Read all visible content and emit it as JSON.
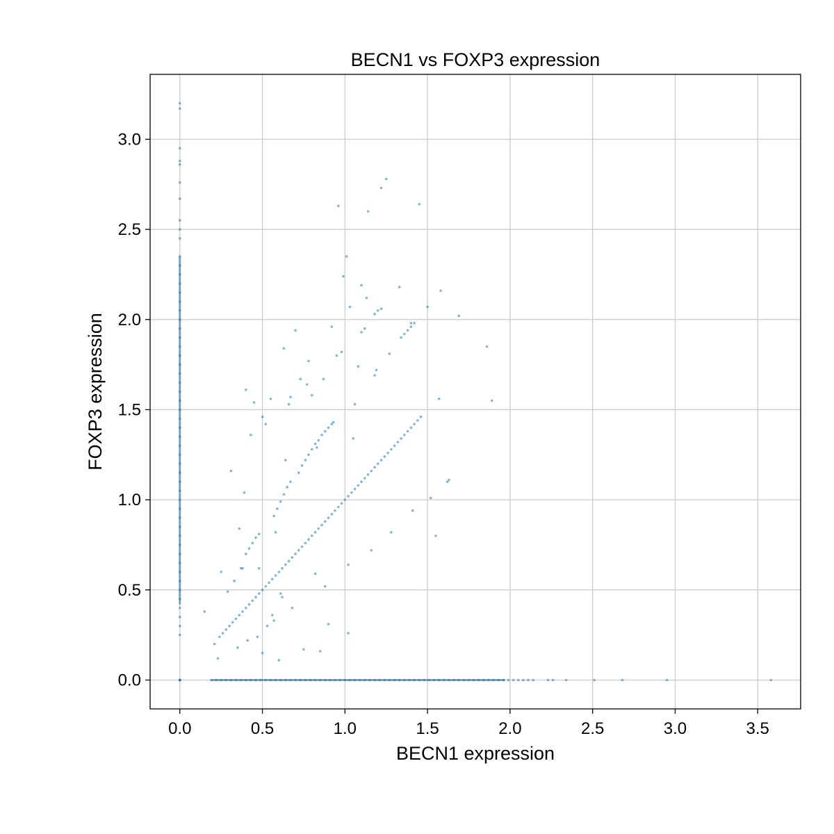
{
  "chart_data": {
    "type": "scatter",
    "title": "BECN1 vs FOXP3 expression",
    "xlabel": "BECN1 expression",
    "ylabel": "FOXP3 expression",
    "xlim": [
      -0.18,
      3.76
    ],
    "ylim": [
      -0.16,
      3.36
    ],
    "xticks": [
      0.0,
      0.5,
      1.0,
      1.5,
      2.0,
      2.5,
      3.0,
      3.5
    ],
    "yticks": [
      0.0,
      0.5,
      1.0,
      1.5,
      2.0,
      2.5,
      3.0
    ],
    "xtick_labels": [
      "0.0",
      "0.5",
      "1.0",
      "1.5",
      "2.0",
      "2.5",
      "3.0",
      "3.5"
    ],
    "ytick_labels": [
      "0.0",
      "0.5",
      "1.0",
      "1.5",
      "2.0",
      "2.5",
      "3.0"
    ],
    "grid": true,
    "point_color": "#1f77b4",
    "point_alpha": 0.55,
    "x": [
      0,
      0,
      0,
      0,
      0,
      0,
      0,
      0,
      0,
      0,
      0,
      0,
      0,
      0,
      0,
      0,
      0,
      0,
      0,
      0,
      0,
      0,
      0,
      0,
      0,
      0,
      0,
      0,
      0,
      0,
      0,
      0,
      0,
      0,
      0,
      0,
      0,
      0,
      0,
      0,
      0,
      0,
      0,
      0,
      0,
      0,
      0,
      0,
      0,
      0,
      0,
      0,
      0,
      0,
      0,
      0,
      0,
      0,
      0,
      0,
      0,
      0.19,
      0.22,
      0.25,
      0.28,
      0.31,
      0.34,
      0.37,
      0.4,
      0.43,
      0.46,
      0.49,
      0.52,
      0.55,
      0.58,
      0.61,
      0.64,
      0.67,
      0.7,
      0.73,
      0.76,
      0.79,
      0.82,
      0.85,
      0.88,
      0.91,
      0.94,
      0.97,
      1.0,
      1.03,
      1.06,
      1.09,
      1.12,
      1.15,
      1.18,
      1.21,
      1.24,
      1.27,
      1.3,
      1.33,
      1.36,
      1.39,
      1.42,
      1.45,
      1.48,
      1.51,
      1.54,
      1.57,
      1.6,
      1.63,
      1.66,
      1.69,
      1.72,
      1.75,
      1.78,
      1.81,
      1.84,
      1.87,
      1.9,
      1.93,
      1.96,
      1.99,
      2.02,
      2.05,
      2.08,
      2.11,
      2.14,
      2.23,
      2.26,
      2.34,
      2.51,
      2.68,
      2.95,
      3.58,
      0.24,
      0.26,
      0.28,
      0.3,
      0.32,
      0.34,
      0.36,
      0.38,
      0.4,
      0.42,
      0.44,
      0.46,
      0.48,
      0.5,
      0.52,
      0.54,
      0.56,
      0.58,
      0.6,
      0.62,
      0.64,
      0.66,
      0.68,
      0.7,
      0.72,
      0.74,
      0.76,
      0.78,
      0.8,
      0.82,
      0.84,
      0.86,
      0.88,
      0.9,
      0.92,
      0.94,
      0.96,
      0.98,
      1.0,
      1.02,
      1.04,
      1.06,
      1.08,
      1.1,
      1.12,
      1.14,
      1.16,
      1.18,
      1.2,
      1.22,
      1.24,
      1.26,
      1.28,
      1.3,
      1.32,
      1.34,
      1.36,
      1.38,
      1.4,
      1.42,
      1.44,
      1.46,
      0.38,
      0.4,
      0.42,
      0.44,
      0.46,
      0.48,
      0.57,
      0.59,
      0.61,
      0.63,
      0.65,
      0.67,
      0.72,
      0.74,
      0.76,
      0.78,
      0.8,
      0.82,
      0.84,
      0.86,
      0.88,
      0.9,
      0.92,
      1.34,
      1.36,
      1.38,
      1.4,
      1.42,
      1.18,
      1.2,
      1.22,
      0.15,
      0.21,
      0.23,
      0.25,
      0.29,
      0.31,
      0.33,
      0.35,
      0.36,
      0.37,
      0.39,
      0.4,
      0.41,
      0.43,
      0.45,
      0.47,
      0.48,
      0.5,
      0.5,
      0.52,
      0.53,
      0.55,
      0.56,
      0.57,
      0.58,
      0.6,
      0.61,
      0.62,
      0.63,
      0.64,
      0.66,
      0.67,
      0.68,
      0.7,
      0.73,
      0.75,
      0.77,
      0.8,
      0.82,
      0.85,
      0.87,
      0.88,
      0.9,
      0.92,
      0.95,
      0.98,
      0.99,
      1.01,
      1.02,
      1.03,
      1.05,
      1.06,
      1.08,
      1.1,
      1.12,
      1.14,
      1.18,
      1.19,
      1.22,
      1.25,
      1.27,
      1.28,
      1.33,
      1.41,
      1.45,
      1.5,
      1.52,
      1.55,
      1.57,
      1.58,
      1.62,
      1.63,
      1.69,
      1.86,
      1.89,
      0.78,
      0.93,
      0.96,
      1.02,
      1.1,
      1.13,
      1.16,
      1.4,
      0.83
    ],
    "y": [
      3.2,
      3.17,
      2.95,
      2.88,
      2.86,
      2.76,
      2.67,
      2.55,
      2.5,
      2.45,
      2.35,
      2.3,
      2.25,
      2.2,
      2.15,
      2.1,
      2.05,
      2.0,
      1.95,
      1.9,
      1.85,
      1.8,
      1.75,
      1.7,
      1.65,
      1.6,
      1.55,
      1.5,
      1.45,
      1.4,
      1.35,
      1.3,
      1.25,
      1.2,
      1.15,
      1.1,
      1.05,
      1.0,
      0.95,
      0.9,
      0.85,
      0.8,
      0.75,
      0.7,
      0.65,
      0.6,
      0.55,
      0.5,
      0.45,
      0.4,
      0.35,
      0.3,
      0.25,
      0,
      0,
      0,
      0,
      0,
      0,
      0,
      0,
      0,
      0,
      0,
      0,
      0,
      0,
      0,
      0,
      0,
      0,
      0,
      0,
      0,
      0,
      0,
      0,
      0,
      0,
      0,
      0,
      0,
      0,
      0,
      0,
      0,
      0,
      0,
      0,
      0,
      0,
      0,
      0,
      0,
      0,
      0,
      0,
      0,
      0,
      0,
      0,
      0,
      0,
      0,
      0,
      0,
      0,
      0,
      0,
      0,
      0,
      0,
      0,
      0,
      0,
      0,
      0,
      0,
      0,
      0,
      0,
      0,
      0,
      0,
      0,
      0,
      0,
      0,
      0,
      0,
      0,
      0,
      0,
      0,
      0.24,
      0.26,
      0.28,
      0.3,
      0.32,
      0.34,
      0.36,
      0.38,
      0.4,
      0.42,
      0.44,
      0.46,
      0.48,
      0.5,
      0.52,
      0.54,
      0.56,
      0.58,
      0.6,
      0.62,
      0.64,
      0.66,
      0.68,
      0.7,
      0.72,
      0.74,
      0.76,
      0.78,
      0.8,
      0.82,
      0.84,
      0.86,
      0.88,
      0.9,
      0.92,
      0.94,
      0.96,
      0.98,
      1.0,
      1.02,
      1.04,
      1.06,
      1.08,
      1.1,
      1.12,
      1.14,
      1.16,
      1.18,
      1.2,
      1.22,
      1.24,
      1.26,
      1.28,
      1.3,
      1.32,
      1.34,
      1.36,
      1.38,
      1.4,
      1.42,
      1.44,
      1.46,
      0.62,
      0.7,
      0.73,
      0.76,
      0.79,
      0.81,
      0.91,
      0.95,
      0.99,
      1.03,
      1.07,
      1.1,
      1.15,
      1.19,
      1.22,
      1.25,
      1.28,
      1.31,
      1.33,
      1.36,
      1.38,
      1.4,
      1.42,
      1.9,
      1.92,
      1.94,
      1.96,
      1.98,
      2.03,
      2.05,
      2.06,
      0.38,
      0.2,
      0.12,
      0.6,
      0.49,
      1.16,
      0.55,
      0.18,
      0.84,
      0.62,
      1.04,
      1.61,
      0.22,
      1.36,
      1.54,
      0.24,
      0.62,
      1.46,
      0.15,
      1.42,
      0.3,
      1.56,
      0.36,
      0.33,
      0.82,
      0.11,
      0.48,
      0.46,
      1.84,
      1.22,
      1.53,
      1.57,
      0.4,
      1.94,
      1.67,
      0.17,
      1.64,
      1.58,
      0.59,
      0.16,
      1.67,
      0.52,
      0.31,
      1.96,
      1.8,
      1.82,
      2.24,
      2.35,
      0.26,
      2.07,
      1.34,
      1.53,
      1.74,
      2.19,
      1.95,
      2.6,
      1.69,
      1.72,
      2.73,
      2.78,
      1.81,
      0.82,
      2.18,
      0.94,
      2.64,
      2.07,
      1.01,
      0.8,
      1.56,
      2.16,
      1.1,
      1.11,
      2.02,
      1.85,
      1.55,
      1.77,
      1.43,
      2.63,
      0.64,
      1.93,
      2.12,
      0.72,
      1.98,
      1.29
    ]
  }
}
